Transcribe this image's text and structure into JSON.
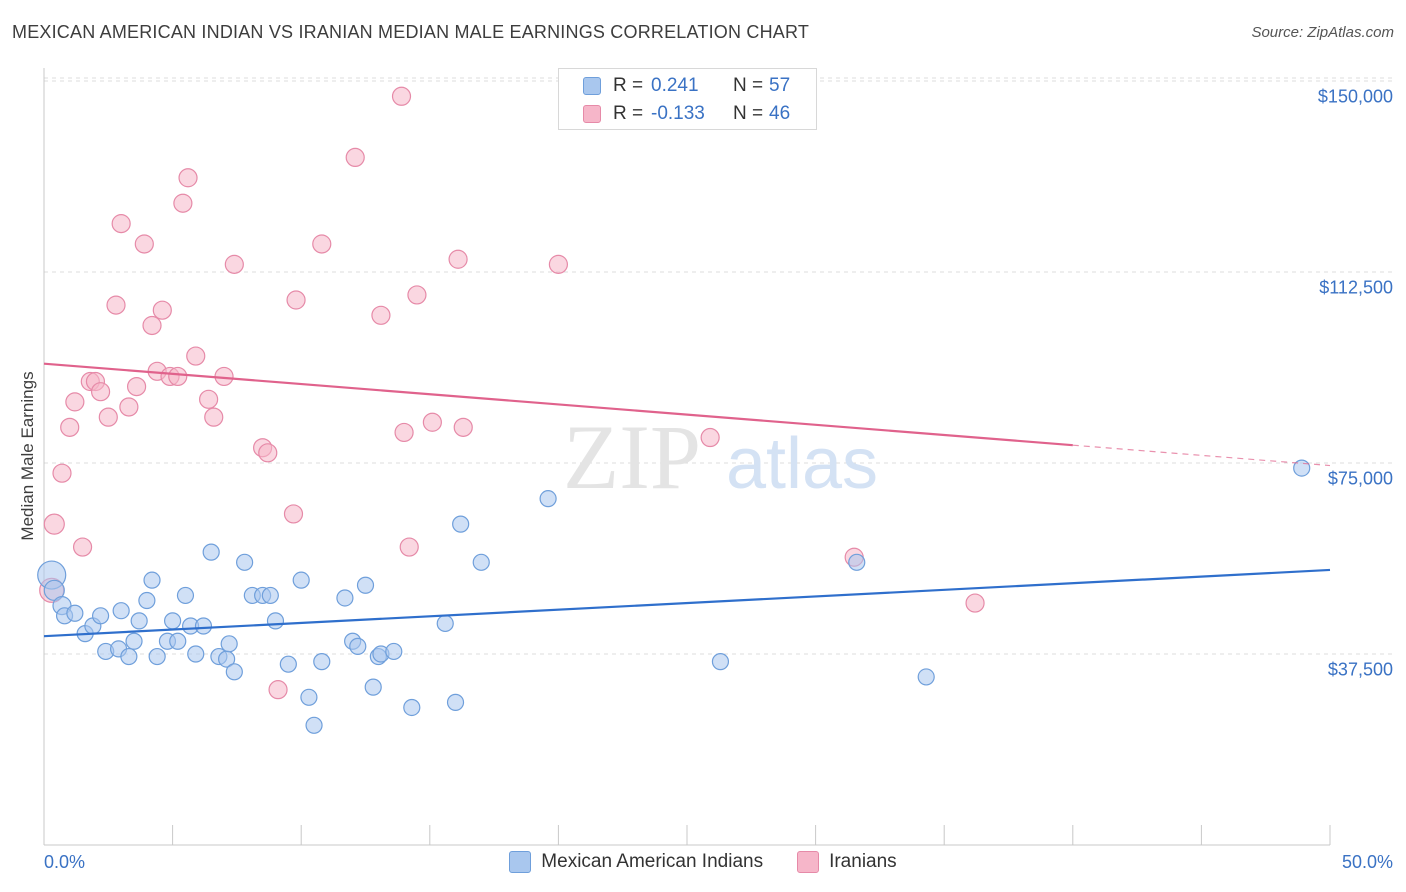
{
  "header": {
    "title": "MEXICAN AMERICAN INDIAN VS IRANIAN MEDIAN MALE EARNINGS CORRELATION CHART",
    "source": "Source: ZipAtlas.com"
  },
  "watermark": {
    "zip": "ZIP",
    "atlas": "atlas"
  },
  "colors": {
    "blue_fill": "#a9c7ee",
    "blue_stroke": "#6f9fdb",
    "blue_line": "#2f6fcc",
    "pink_fill": "#f6b6c9",
    "pink_stroke": "#e68aa8",
    "pink_line": "#e0628c",
    "tick_text": "#3a72c4",
    "grid": "#dcdcdc"
  },
  "stats_legend": {
    "rows": [
      {
        "r_label": "R =",
        "r_value": "0.241",
        "n_label": "N =",
        "n_value": "57"
      },
      {
        "r_label": "R =",
        "r_value": "-0.133",
        "n_label": "N =",
        "n_value": "46"
      }
    ]
  },
  "axes": {
    "y_title": "Median Male Earnings",
    "y_ticks": [
      "$150,000",
      "$112,500",
      "$75,000",
      "$37,500"
    ],
    "x_ticks": [
      "0.0%",
      "50.0%"
    ]
  },
  "series_legend": [
    "Mexican American Indians",
    "Iranians"
  ],
  "chart_data": {
    "type": "scatter",
    "title": "MEXICAN AMERICAN INDIAN VS IRANIAN MEDIAN MALE EARNINGS CORRELATION CHART",
    "xlabel": "",
    "ylabel": "Median Male Earnings",
    "xlim": [
      0,
      50
    ],
    "ylim": [
      0,
      156000
    ],
    "y_ticks": [
      37500,
      75000,
      112500,
      150000
    ],
    "x_tick_labels": [
      "0.0%",
      "50.0%"
    ],
    "grid": true,
    "legend_position": "bottom",
    "series": [
      {
        "name": "Mexican American Indians",
        "r": 0.241,
        "n": 57,
        "trend": {
          "x": [
            0,
            50
          ],
          "y": [
            41000,
            54000
          ]
        },
        "points": [
          [
            0.3,
            53000,
            14
          ],
          [
            0.4,
            50000,
            10
          ],
          [
            0.7,
            47000,
            9
          ],
          [
            0.8,
            45000,
            8
          ],
          [
            1.2,
            45500,
            8
          ],
          [
            1.6,
            41500,
            8
          ],
          [
            1.9,
            43000,
            8
          ],
          [
            2.2,
            45000,
            8
          ],
          [
            2.4,
            38000,
            8
          ],
          [
            2.9,
            38500,
            8
          ],
          [
            3.0,
            46000,
            8
          ],
          [
            3.3,
            37000,
            8
          ],
          [
            3.5,
            40000,
            8
          ],
          [
            3.7,
            44000,
            8
          ],
          [
            4.0,
            48000,
            8
          ],
          [
            4.2,
            52000,
            8
          ],
          [
            4.4,
            37000,
            8
          ],
          [
            4.8,
            40000,
            8
          ],
          [
            5.0,
            44000,
            8
          ],
          [
            5.2,
            40000,
            8
          ],
          [
            5.5,
            49000,
            8
          ],
          [
            5.7,
            43000,
            8
          ],
          [
            5.9,
            37500,
            8
          ],
          [
            6.2,
            43000,
            8
          ],
          [
            6.5,
            57500,
            8
          ],
          [
            6.8,
            37000,
            8
          ],
          [
            7.1,
            36500,
            8
          ],
          [
            7.2,
            39500,
            8
          ],
          [
            7.4,
            34000,
            8
          ],
          [
            7.8,
            55500,
            8
          ],
          [
            8.1,
            49000,
            8
          ],
          [
            8.5,
            49000,
            8
          ],
          [
            8.8,
            49000,
            8
          ],
          [
            9.0,
            44000,
            8
          ],
          [
            9.5,
            35500,
            8
          ],
          [
            10.0,
            52000,
            8
          ],
          [
            10.3,
            29000,
            8
          ],
          [
            10.5,
            23500,
            8
          ],
          [
            10.8,
            36000,
            8
          ],
          [
            11.7,
            48500,
            8
          ],
          [
            12.0,
            40000,
            8
          ],
          [
            12.2,
            39000,
            8
          ],
          [
            12.5,
            51000,
            8
          ],
          [
            12.8,
            31000,
            8
          ],
          [
            13.0,
            37000,
            8
          ],
          [
            13.1,
            37500,
            8
          ],
          [
            13.6,
            38000,
            8
          ],
          [
            14.3,
            27000,
            8
          ],
          [
            15.6,
            43500,
            8
          ],
          [
            16.0,
            28000,
            8
          ],
          [
            16.2,
            63000,
            8
          ],
          [
            17.0,
            55500,
            8
          ],
          [
            19.6,
            68000,
            8
          ],
          [
            26.3,
            36000,
            8
          ],
          [
            31.6,
            55500,
            8
          ],
          [
            34.3,
            33000,
            8
          ],
          [
            48.9,
            74000,
            8
          ]
        ]
      },
      {
        "name": "Iranians",
        "r": -0.133,
        "n": 46,
        "trend": {
          "x": [
            0,
            40
          ],
          "y": [
            94500,
            78500
          ]
        },
        "trend_dashed": {
          "x": [
            40,
            50
          ],
          "y": [
            78500,
            74500
          ]
        },
        "points": [
          [
            0.3,
            50000,
            12
          ],
          [
            0.4,
            63000,
            10
          ],
          [
            0.7,
            73000,
            9
          ],
          [
            1.0,
            82000,
            9
          ],
          [
            1.2,
            87000,
            9
          ],
          [
            1.5,
            58500,
            9
          ],
          [
            1.8,
            91000,
            9
          ],
          [
            2.0,
            91000,
            9
          ],
          [
            2.2,
            89000,
            9
          ],
          [
            2.5,
            84000,
            9
          ],
          [
            2.8,
            106000,
            9
          ],
          [
            3.0,
            122000,
            9
          ],
          [
            3.3,
            86000,
            9
          ],
          [
            3.6,
            90000,
            9
          ],
          [
            3.9,
            118000,
            9
          ],
          [
            4.2,
            102000,
            9
          ],
          [
            4.4,
            93000,
            9
          ],
          [
            4.6,
            105000,
            9
          ],
          [
            4.9,
            92000,
            9
          ],
          [
            5.2,
            92000,
            9
          ],
          [
            5.4,
            126000,
            9
          ],
          [
            5.6,
            131000,
            9
          ],
          [
            5.9,
            96000,
            9
          ],
          [
            6.4,
            87500,
            9
          ],
          [
            6.6,
            84000,
            9
          ],
          [
            7.0,
            92000,
            9
          ],
          [
            7.4,
            114000,
            9
          ],
          [
            8.5,
            78000,
            9
          ],
          [
            8.7,
            77000,
            9
          ],
          [
            9.1,
            30500,
            9
          ],
          [
            9.7,
            65000,
            9
          ],
          [
            9.8,
            107000,
            9
          ],
          [
            10.8,
            118000,
            9
          ],
          [
            12.1,
            135000,
            9
          ],
          [
            13.1,
            104000,
            9
          ],
          [
            13.9,
            147000,
            9
          ],
          [
            14.0,
            81000,
            9
          ],
          [
            14.2,
            58500,
            9
          ],
          [
            14.5,
            108000,
            9
          ],
          [
            15.1,
            83000,
            9
          ],
          [
            16.1,
            115000,
            9
          ],
          [
            16.3,
            82000,
            9
          ],
          [
            20.0,
            114000,
            9
          ],
          [
            25.9,
            80000,
            9
          ],
          [
            31.5,
            56500,
            9
          ],
          [
            36.2,
            47500,
            9
          ]
        ]
      }
    ]
  }
}
